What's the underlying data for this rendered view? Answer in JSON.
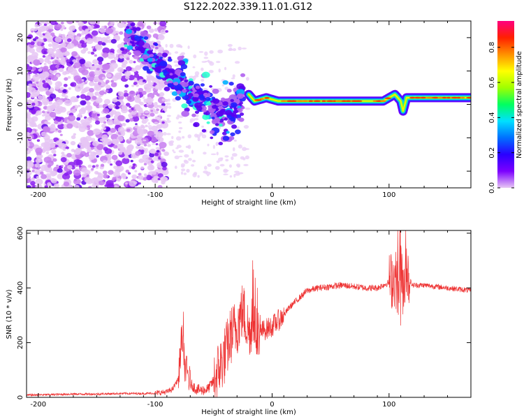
{
  "figure": {
    "title": "S122.2022.339.11.01.G12"
  },
  "chart_data": [
    {
      "type": "heatmap",
      "panel": "spectrogram",
      "xlabel": "Height of straight line (km)",
      "ylabel": "Frequency (Hz)",
      "xlim": [
        -210,
        170
      ],
      "ylim": [
        -25,
        25
      ],
      "x_ticks": [
        -200,
        -100,
        0,
        100
      ],
      "y_ticks": [
        -20,
        -10,
        0,
        10,
        20
      ],
      "colorbar": {
        "label": "Normalized spectral amplitude",
        "range": [
          0,
          0.95
        ],
        "ticks": [
          "0.0",
          "0.2",
          "0.4",
          "0.6",
          "0.8"
        ],
        "colormap": [
          "#e8c8f4",
          "#7c00ff",
          "#2a00ff",
          "#0070ff",
          "#00e0ff",
          "#00ff60",
          "#a0ff00",
          "#ffff00",
          "#ff9000",
          "#ff2000",
          "#ff0080"
        ]
      },
      "features": {
        "noise_region_x": [
          -210,
          -100
        ],
        "dispersed_tone": [
          [
            -125,
            22
          ],
          [
            -100,
            13
          ],
          [
            -85,
            8
          ],
          [
            -70,
            4
          ],
          [
            -55,
            0
          ],
          [
            -45,
            -3
          ],
          [
            -35,
            -2
          ],
          [
            -25,
            3
          ]
        ],
        "main_tone": [
          [
            -20,
            3
          ],
          [
            -15,
            1
          ],
          [
            -5,
            2
          ],
          [
            5,
            1
          ],
          [
            20,
            1
          ],
          [
            50,
            1
          ],
          [
            75,
            1
          ],
          [
            95,
            1
          ],
          [
            105,
            3
          ],
          [
            110,
            1
          ],
          [
            112,
            -2
          ],
          [
            115,
            2
          ],
          [
            140,
            2
          ],
          [
            170,
            2
          ]
        ]
      }
    },
    {
      "type": "line",
      "panel": "snr",
      "xlabel": "Height of straight line (km)",
      "ylabel": "SNR (10 * v/v)",
      "xlim": [
        -210,
        170
      ],
      "ylim": [
        0,
        610
      ],
      "x_ticks": [
        -200,
        -100,
        0,
        100
      ],
      "y_ticks": [
        0,
        200,
        400,
        600
      ],
      "color": "#ee3333",
      "series": [
        {
          "x": [
            -210,
            -190,
            -170,
            -150,
            -130,
            -110,
            -100,
            -90,
            -85,
            -80,
            -77,
            -75,
            -72,
            -70,
            -65,
            -60,
            -55,
            -50,
            -45,
            -40,
            -35,
            -30,
            -25,
            -20,
            -15,
            -10,
            0,
            10,
            15,
            20,
            25,
            30,
            40,
            50,
            60,
            70,
            80,
            90,
            95,
            100,
            105,
            108,
            110,
            112,
            115,
            120,
            130,
            140,
            150,
            160,
            170
          ],
          "values": [
            8,
            10,
            12,
            12,
            14,
            14,
            15,
            20,
            30,
            70,
            250,
            120,
            80,
            50,
            30,
            25,
            30,
            60,
            110,
            160,
            230,
            260,
            320,
            240,
            250,
            240,
            260,
            300,
            330,
            350,
            370,
            390,
            400,
            405,
            410,
            405,
            400,
            400,
            410,
            420,
            440,
            400,
            500,
            380,
            450,
            410,
            410,
            405,
            400,
            395,
            390
          ]
        }
      ]
    }
  ]
}
